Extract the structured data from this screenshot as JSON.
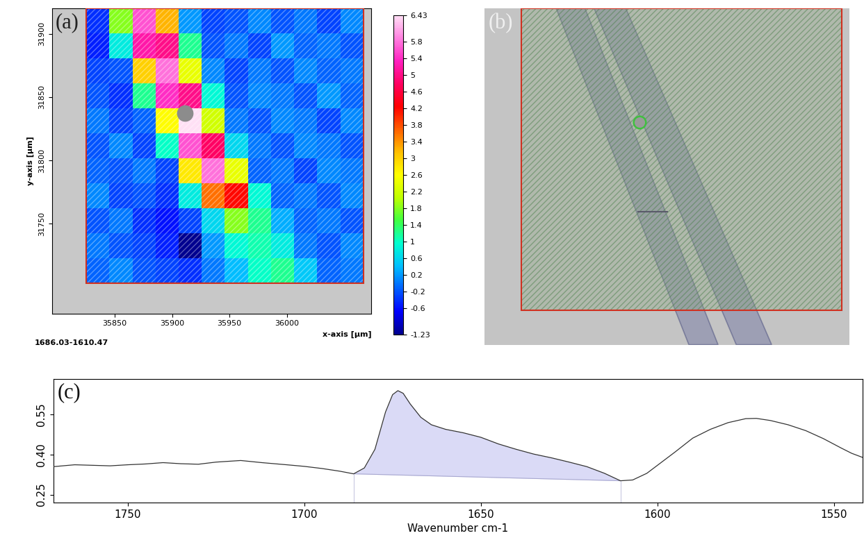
{
  "chart_data": [
    {
      "type": "heatmap",
      "panel_label": "(a)",
      "xlabel": "x-axis [µm]",
      "ylabel": "y-axis [µm]",
      "caption": "1686.03-1610.47",
      "xlim": [
        35795,
        36074
      ],
      "ylim": [
        31679,
        31920
      ],
      "xticks": [
        35850,
        35900,
        35950,
        36000
      ],
      "yticks": [
        31750,
        31800,
        31850,
        31900
      ],
      "cell_x_range": [
        35825,
        36067
      ],
      "cell_y_range": [
        31703,
        31920
      ],
      "cells": [
        [
          -0.4,
          1.8,
          5.6,
          3.2,
          0.2,
          -0.3,
          -0.2,
          0.1,
          -0.2,
          0.0,
          -0.3,
          0.1
        ],
        [
          -0.5,
          0.8,
          5.2,
          5.0,
          1.2,
          -0.2,
          0.0,
          -0.3,
          0.2,
          -0.1,
          0.0,
          -0.2
        ],
        [
          -0.3,
          -0.2,
          3.0,
          5.8,
          2.4,
          0.1,
          -0.3,
          0.0,
          -0.2,
          0.1,
          -0.1,
          0.0
        ],
        [
          -0.2,
          -0.4,
          1.2,
          5.4,
          5.0,
          0.9,
          -0.2,
          0.1,
          0.0,
          -0.2,
          0.2,
          -0.1
        ],
        [
          0.0,
          -0.3,
          -0.1,
          2.6,
          6.43,
          2.2,
          0.0,
          -0.2,
          0.1,
          0.0,
          -0.3,
          0.1
        ],
        [
          -0.2,
          0.1,
          -0.3,
          1.0,
          5.6,
          4.8,
          0.6,
          0.0,
          -0.2,
          0.1,
          0.0,
          -0.2
        ],
        [
          -0.1,
          -0.2,
          0.0,
          -0.3,
          2.8,
          5.8,
          2.4,
          -0.1,
          0.0,
          -0.3,
          0.1,
          0.0
        ],
        [
          0.1,
          -0.3,
          -0.2,
          -0.4,
          0.8,
          3.6,
          4.2,
          0.9,
          -0.1,
          0.0,
          -0.2,
          0.1
        ],
        [
          -0.2,
          0.0,
          -0.4,
          -0.6,
          -0.3,
          0.6,
          1.8,
          1.2,
          0.3,
          -0.1,
          0.0,
          -0.2
        ],
        [
          0.0,
          -0.2,
          -0.3,
          -0.5,
          -1.23,
          0.2,
          0.9,
          1.1,
          0.8,
          0.0,
          -0.2,
          0.1
        ],
        [
          -0.1,
          0.1,
          -0.2,
          -0.3,
          -0.4,
          0.0,
          0.4,
          1.0,
          1.2,
          0.5,
          -0.1,
          0.0
        ]
      ],
      "marked_point": [
        35911,
        31837
      ],
      "colorbar": {
        "range": [
          -1.23,
          6.43
        ],
        "ticks": [
          6.43,
          5.8,
          5.4,
          5,
          4.6,
          4.2,
          3.8,
          3.4,
          3,
          2.6,
          2.2,
          1.8,
          1.4,
          1,
          0.6,
          0.2,
          -0.2,
          -0.6,
          -1.23
        ]
      }
    },
    {
      "type": "line",
      "panel_label": "(c)",
      "xlabel": "Wavenumber cm-1",
      "color": "#333333",
      "xlim": [
        1771,
        1542
      ],
      "ylim": [
        0.22,
        0.683
      ],
      "xticks": [
        1750,
        1700,
        1650,
        1600,
        1550
      ],
      "yticks": [
        0.25,
        {
          "value": 0.4,
          "label": "0.40"
        },
        0.55
      ],
      "integration_range": [
        1686.03,
        1610.47
      ],
      "x": [
        1771,
        1765,
        1760,
        1755,
        1750,
        1745,
        1740,
        1735,
        1730,
        1725,
        1718,
        1712,
        1705,
        1700,
        1695,
        1690,
        1686.03,
        1683,
        1680,
        1677,
        1675,
        1673.5,
        1672,
        1670,
        1667,
        1664,
        1660,
        1655,
        1650,
        1645,
        1640,
        1635,
        1630,
        1625,
        1620,
        1615,
        1610.47,
        1607,
        1603,
        1600,
        1595,
        1590,
        1585,
        1580,
        1575,
        1572,
        1568,
        1563,
        1558,
        1553,
        1548,
        1545,
        1542
      ],
      "values": [
        0.355,
        0.362,
        0.36,
        0.358,
        0.362,
        0.365,
        0.37,
        0.366,
        0.364,
        0.372,
        0.378,
        0.37,
        0.362,
        0.356,
        0.348,
        0.338,
        0.328,
        0.35,
        0.42,
        0.56,
        0.625,
        0.64,
        0.63,
        0.59,
        0.54,
        0.512,
        0.495,
        0.482,
        0.465,
        0.44,
        0.42,
        0.402,
        0.388,
        0.372,
        0.355,
        0.33,
        0.302,
        0.305,
        0.33,
        0.36,
        0.41,
        0.462,
        0.495,
        0.52,
        0.535,
        0.536,
        0.528,
        0.512,
        0.49,
        0.46,
        0.425,
        0.405,
        0.39
      ]
    }
  ],
  "image_panel": {
    "panel_label": "(b)"
  }
}
